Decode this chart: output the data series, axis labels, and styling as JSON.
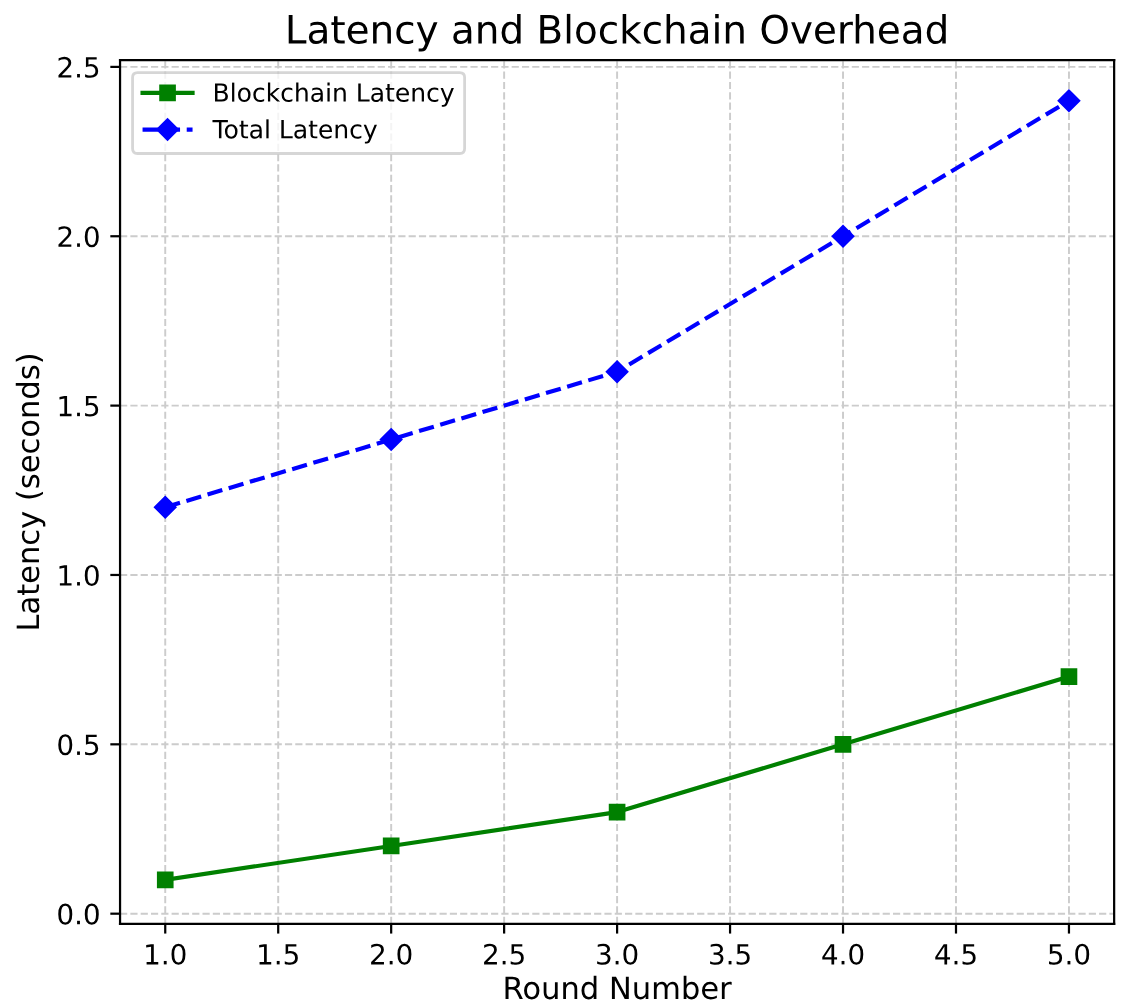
{
  "chart_data": {
    "type": "line",
    "title": "Latency and Blockchain Overhead",
    "xlabel": "Round Number",
    "ylabel": "Latency (seconds)",
    "x": [
      1,
      2,
      3,
      4,
      5
    ],
    "series": [
      {
        "name": "Blockchain Latency",
        "color": "#008000",
        "values": [
          0.1,
          0.2,
          0.3,
          0.5,
          0.7
        ],
        "marker": "square",
        "line_style": "solid"
      },
      {
        "name": "Total Latency",
        "color": "#0000ff",
        "values": [
          1.2,
          1.4,
          1.6,
          2.0,
          2.4
        ],
        "marker": "diamond",
        "line_style": "dashed"
      }
    ],
    "xlim": [
      0.8,
      5.2
    ],
    "ylim": [
      -0.03,
      2.52
    ],
    "xticks": [
      {
        "value": 1,
        "label": "1.0"
      },
      {
        "value": 1.5,
        "label": "1.5"
      },
      {
        "value": 2,
        "label": "2.0"
      },
      {
        "value": 2.5,
        "label": "2.5"
      },
      {
        "value": 3,
        "label": "3.0"
      },
      {
        "value": 3.5,
        "label": "3.5"
      },
      {
        "value": 4,
        "label": "4.0"
      },
      {
        "value": 4.5,
        "label": "4.5"
      },
      {
        "value": 5,
        "label": "5.0"
      }
    ],
    "yticks": [
      {
        "value": 0,
        "label": "0.0"
      },
      {
        "value": 0.5,
        "label": "0.5"
      },
      {
        "value": 1,
        "label": "1.0"
      },
      {
        "value": 1.5,
        "label": "1.5"
      },
      {
        "value": 2,
        "label": "2.0"
      },
      {
        "value": 2.5,
        "label": "2.5"
      }
    ],
    "grid": true,
    "legend": "top left"
  }
}
